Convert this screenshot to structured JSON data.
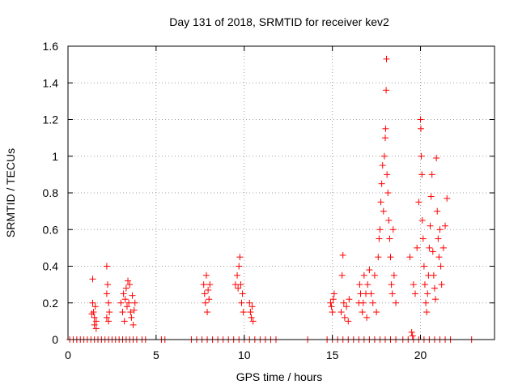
{
  "chart_data": {
    "type": "scatter",
    "title": "Day 131 of 2018, SRMTID for receiver kev2",
    "xlabel": "GPS time / hours",
    "ylabel": "SRMTID / TECUs",
    "xlim": [
      0,
      24.2
    ],
    "ylim": [
      0,
      1.6
    ],
    "xticks": [
      0,
      5,
      10,
      15,
      20
    ],
    "xtick_labels": [
      "0",
      "5",
      "10",
      "15",
      "20"
    ],
    "yticks": [
      0,
      0.2,
      0.4,
      0.6,
      0.8,
      1,
      1.2,
      1.4,
      1.6
    ],
    "ytick_labels": [
      "0",
      "0.2",
      "0.4",
      "0.6",
      "0.8",
      "1",
      "1.2",
      "1.4",
      "1.6"
    ],
    "grid": true,
    "marker": "plus",
    "color": "#ff0000",
    "series": [
      {
        "name": "SRMTID",
        "points": [
          [
            0.1,
            0
          ],
          [
            0.3,
            0
          ],
          [
            0.5,
            0
          ],
          [
            0.7,
            0
          ],
          [
            0.9,
            0
          ],
          [
            1.1,
            0
          ],
          [
            1.3,
            0
          ],
          [
            1.5,
            0
          ],
          [
            1.7,
            0
          ],
          [
            1.9,
            0
          ],
          [
            2.1,
            0
          ],
          [
            2.3,
            0
          ],
          [
            2.5,
            0
          ],
          [
            2.7,
            0
          ],
          [
            2.9,
            0
          ],
          [
            3.1,
            0
          ],
          [
            3.3,
            0
          ],
          [
            3.5,
            0
          ],
          [
            3.7,
            0
          ],
          [
            3.9,
            0
          ],
          [
            4.2,
            0
          ],
          [
            4.4,
            0
          ],
          [
            5.3,
            0
          ],
          [
            5.5,
            0
          ],
          [
            7.0,
            0
          ],
          [
            7.3,
            0
          ],
          [
            7.6,
            0
          ],
          [
            7.9,
            0
          ],
          [
            8.2,
            0
          ],
          [
            8.5,
            0
          ],
          [
            8.8,
            0
          ],
          [
            9.1,
            0
          ],
          [
            9.4,
            0
          ],
          [
            9.7,
            0
          ],
          [
            10.0,
            0
          ],
          [
            10.3,
            0
          ],
          [
            10.6,
            0
          ],
          [
            10.9,
            0
          ],
          [
            11.2,
            0
          ],
          [
            11.5,
            0
          ],
          [
            11.8,
            0
          ],
          [
            13.6,
            0
          ],
          [
            14.7,
            0
          ],
          [
            15.0,
            0
          ],
          [
            15.3,
            0
          ],
          [
            15.6,
            0
          ],
          [
            15.9,
            0
          ],
          [
            16.2,
            0
          ],
          [
            16.5,
            0
          ],
          [
            16.8,
            0
          ],
          [
            17.1,
            0
          ],
          [
            17.4,
            0
          ],
          [
            17.7,
            0
          ],
          [
            18.0,
            0
          ],
          [
            18.3,
            0
          ],
          [
            18.6,
            0
          ],
          [
            19.0,
            0
          ],
          [
            19.3,
            0
          ],
          [
            19.6,
            0
          ],
          [
            19.9,
            0
          ],
          [
            20.2,
            0
          ],
          [
            20.5,
            0
          ],
          [
            20.8,
            0
          ],
          [
            21.1,
            0
          ],
          [
            21.4,
            0
          ],
          [
            21.7,
            0
          ],
          [
            22.9,
            0
          ],
          [
            1.4,
            0.33
          ],
          [
            1.4,
            0.2
          ],
          [
            1.45,
            0.15
          ],
          [
            1.5,
            0.12
          ],
          [
            1.5,
            0.08
          ],
          [
            1.55,
            0.18
          ],
          [
            1.6,
            0.1
          ],
          [
            1.35,
            0.14
          ],
          [
            1.6,
            0.06
          ],
          [
            2.2,
            0.4
          ],
          [
            2.25,
            0.3
          ],
          [
            2.2,
            0.25
          ],
          [
            2.3,
            0.2
          ],
          [
            2.35,
            0.15
          ],
          [
            2.2,
            0.12
          ],
          [
            2.3,
            0.1
          ],
          [
            3.0,
            0.2
          ],
          [
            3.1,
            0.15
          ],
          [
            3.15,
            0.25
          ],
          [
            3.2,
            0.1
          ],
          [
            3.25,
            0.22
          ],
          [
            3.3,
            0.28
          ],
          [
            3.35,
            0.18
          ],
          [
            3.4,
            0.32
          ],
          [
            3.45,
            0.2
          ],
          [
            3.5,
            0.3
          ],
          [
            3.55,
            0.15
          ],
          [
            3.6,
            0.12
          ],
          [
            3.65,
            0.24
          ],
          [
            3.7,
            0.08
          ],
          [
            3.75,
            0.16
          ],
          [
            3.8,
            0.2
          ],
          [
            7.7,
            0.3
          ],
          [
            7.75,
            0.25
          ],
          [
            7.8,
            0.2
          ],
          [
            7.85,
            0.35
          ],
          [
            7.9,
            0.15
          ],
          [
            7.95,
            0.27
          ],
          [
            8.0,
            0.22
          ],
          [
            8.05,
            0.3
          ],
          [
            9.5,
            0.3
          ],
          [
            9.6,
            0.35
          ],
          [
            9.65,
            0.28
          ],
          [
            9.7,
            0.4
          ],
          [
            9.75,
            0.45
          ],
          [
            9.8,
            0.3
          ],
          [
            9.85,
            0.2
          ],
          [
            9.9,
            0.25
          ],
          [
            9.95,
            0.15
          ],
          [
            10.3,
            0.2
          ],
          [
            10.35,
            0.15
          ],
          [
            10.4,
            0.12
          ],
          [
            10.45,
            0.18
          ],
          [
            10.5,
            0.1
          ],
          [
            14.9,
            0.2
          ],
          [
            14.95,
            0.18
          ],
          [
            15.0,
            0.15
          ],
          [
            15.05,
            0.22
          ],
          [
            15.1,
            0.25
          ],
          [
            15.5,
            0.15
          ],
          [
            15.55,
            0.35
          ],
          [
            15.6,
            0.46
          ],
          [
            15.65,
            0.2
          ],
          [
            15.7,
            0.12
          ],
          [
            15.8,
            0.18
          ],
          [
            15.9,
            0.1
          ],
          [
            15.95,
            0.22
          ],
          [
            16.5,
            0.2
          ],
          [
            16.55,
            0.3
          ],
          [
            16.6,
            0.25
          ],
          [
            16.7,
            0.15
          ],
          [
            16.75,
            0.2
          ],
          [
            16.8,
            0.35
          ],
          [
            16.9,
            0.25
          ],
          [
            16.95,
            0.12
          ],
          [
            17.0,
            0.3
          ],
          [
            17.1,
            0.38
          ],
          [
            17.2,
            0.25
          ],
          [
            17.3,
            0.2
          ],
          [
            17.4,
            0.35
          ],
          [
            17.5,
            0.15
          ],
          [
            17.6,
            0.45
          ],
          [
            17.65,
            0.55
          ],
          [
            17.7,
            0.6
          ],
          [
            17.75,
            0.75
          ],
          [
            17.8,
            0.85
          ],
          [
            17.85,
            0.95
          ],
          [
            17.9,
            0.7
          ],
          [
            17.95,
            1.0
          ],
          [
            18.0,
            1.1
          ],
          [
            18.02,
            1.15
          ],
          [
            18.05,
            1.36
          ],
          [
            18.07,
            1.53
          ],
          [
            18.1,
            0.9
          ],
          [
            18.15,
            0.8
          ],
          [
            18.2,
            0.65
          ],
          [
            18.25,
            0.55
          ],
          [
            18.3,
            0.45
          ],
          [
            18.35,
            0.3
          ],
          [
            18.4,
            0.25
          ],
          [
            18.45,
            0.6
          ],
          [
            18.5,
            0.35
          ],
          [
            18.6,
            0.2
          ],
          [
            19.4,
            0.45
          ],
          [
            19.5,
            0.04
          ],
          [
            19.55,
            0.02
          ],
          [
            19.6,
            0.3
          ],
          [
            19.7,
            0.25
          ],
          [
            19.8,
            0.5
          ],
          [
            19.9,
            0.75
          ],
          [
            20.0,
            1.2
          ],
          [
            20.02,
            1.15
          ],
          [
            20.05,
            1.0
          ],
          [
            20.08,
            0.9
          ],
          [
            20.1,
            0.65
          ],
          [
            20.15,
            0.55
          ],
          [
            20.2,
            0.4
          ],
          [
            20.25,
            0.3
          ],
          [
            20.3,
            0.2
          ],
          [
            20.35,
            0.15
          ],
          [
            20.4,
            0.25
          ],
          [
            20.45,
            0.35
          ],
          [
            20.5,
            0.5
          ],
          [
            20.55,
            0.62
          ],
          [
            20.6,
            0.78
          ],
          [
            20.65,
            0.9
          ],
          [
            20.7,
            0.48
          ],
          [
            20.75,
            0.35
          ],
          [
            20.8,
            0.28
          ],
          [
            20.85,
            0.22
          ],
          [
            20.9,
            0.99
          ],
          [
            20.95,
            0.7
          ],
          [
            21.0,
            0.55
          ],
          [
            21.05,
            0.45
          ],
          [
            21.1,
            0.6
          ],
          [
            21.15,
            0.4
          ],
          [
            21.2,
            0.3
          ],
          [
            21.3,
            0.5
          ],
          [
            21.4,
            0.62
          ],
          [
            21.5,
            0.77
          ]
        ]
      }
    ]
  }
}
